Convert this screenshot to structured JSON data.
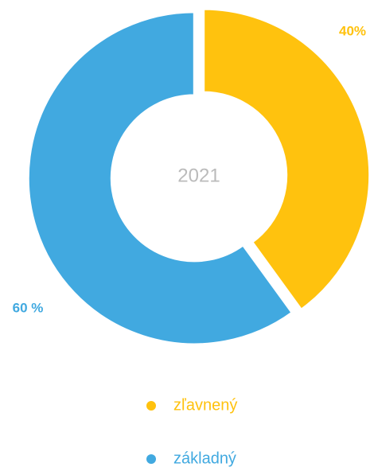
{
  "chart_data": {
    "type": "donut",
    "center_label": "2021",
    "categories": [
      "zľavnený",
      "základný"
    ],
    "values": [
      40,
      60
    ],
    "value_labels": [
      "40%",
      "60 %"
    ],
    "colors": [
      "#ffc20e",
      "#41a9e0"
    ]
  }
}
